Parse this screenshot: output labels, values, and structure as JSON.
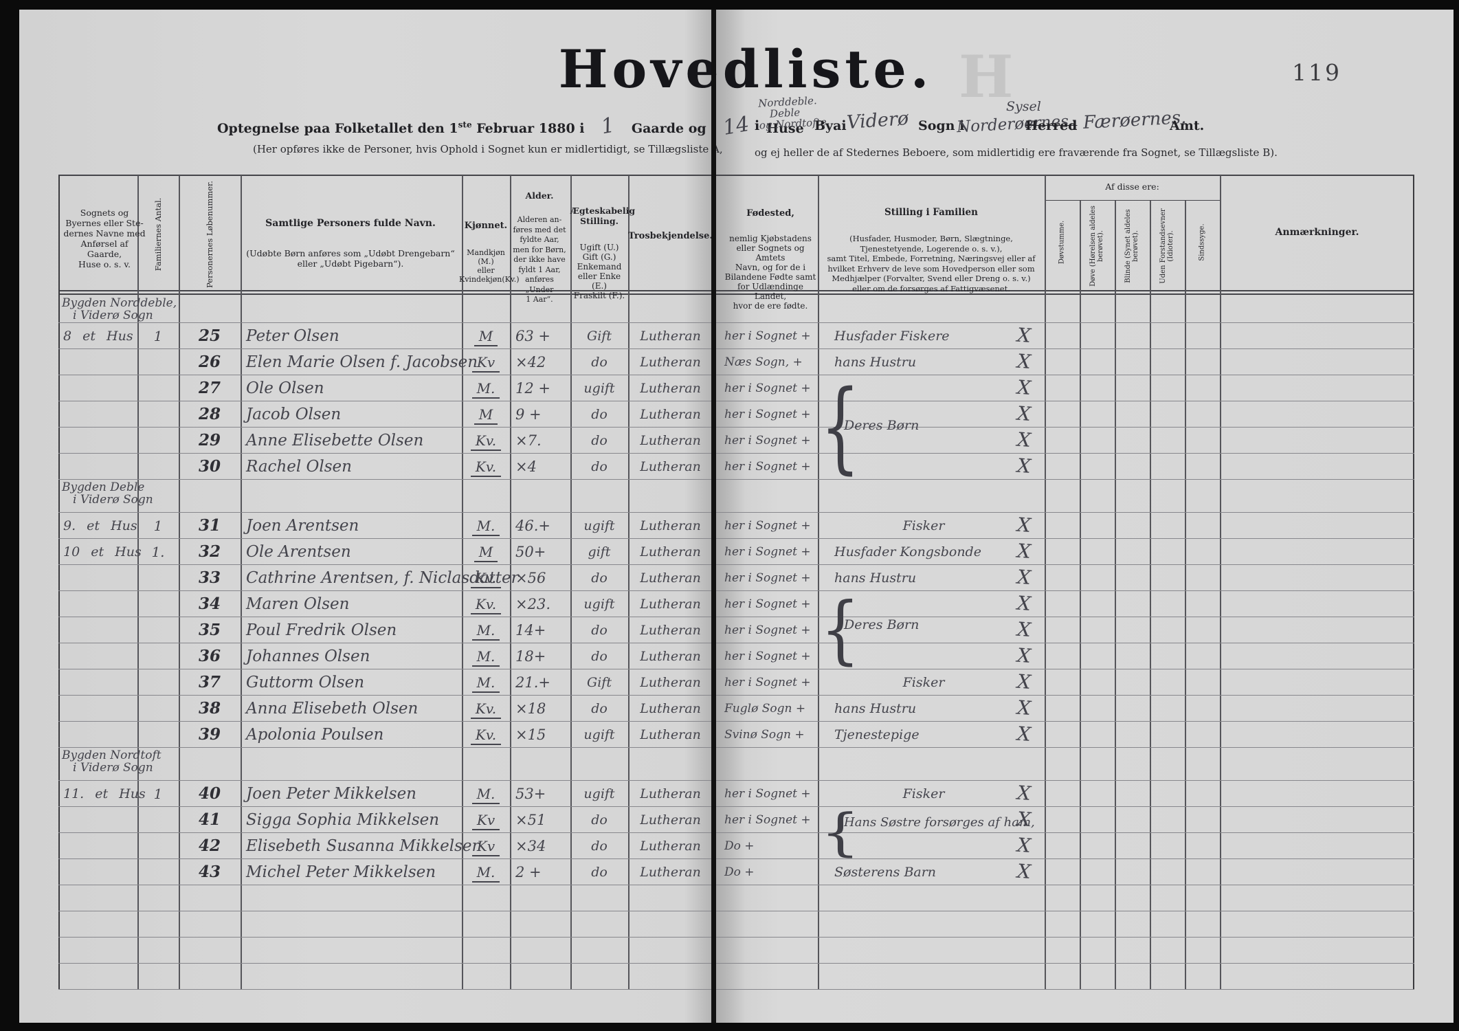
{
  "colors": {
    "paper": "#d6d6d6",
    "print_ink": "#222226",
    "hand_ink": "#44444c"
  },
  "page": {
    "title": "Hovedliste.",
    "page_number": "119",
    "watermark": "H"
  },
  "subtitle": {
    "intro": "Optegnelse paa Folketallet den 1",
    "intro_sup": "ste",
    "intro_rest": " Februar 1880 i",
    "hand_gaarde": "1",
    "gaarde": "Gaarde og",
    "hand_huse": "14",
    "huse": "Huse",
    "i1": "i",
    "hand_place1": "Norddeble.",
    "hand_place2": "Deble",
    "hand_place3": "og Nordtofte",
    "by": "Byai",
    "hand_by": "Viderø",
    "sogn": "Sogn i",
    "hand_sogn": "Norderøernes",
    "hand_syssel": "Sysel",
    "herred": "Herred",
    "i2": "i",
    "hand_amt": "Færøernes.",
    "amt": "Amt.",
    "note_left": "(Her opføres ikke de Personer, hvis Ophold i Sognet kun er midlertidigt, se Tillægsliste A,",
    "note_right": "og ej heller de af Stedernes Beboere, som midlertidig ere fraværende fra Sognet, se Tillægsliste B)."
  },
  "columns": {
    "place": "Sognets og\nByernes eller Ste-\ndernes Navne med\nAnførsel af Gaarde,\nHuse o. s. v.",
    "familier": "Familiernes Antal.",
    "lobenummer": "Personernes Løbenummer.",
    "navn_title": "Samtlige Personers fulde Navn.",
    "navn_body": "(Udøbte Børn anføres som „Udøbt Drengebarn“\neller „Udøbt Pigebarn“).",
    "kjon_title": "Kjønnet.",
    "kjon_body": "Mandkjøn (M.)\neller\nKvindekjøn(Kv.)",
    "alder_title": "Alder.",
    "alder_body": "Alderen an-\nføres med det\nfyldte Aar,\nmen for Børn,\nder ikke have\nfyldt 1 Aar,\nanføres\n„Under\n1 Aar“.",
    "aegteskab_title": "Ægteskabelig\nStilling.",
    "aegteskab_body": "Ugift (U.)\nGift (G.)\nEnkemand\neller Enke (E.)\nFraskilt (F.).",
    "tros": "Trosbekjendelse.",
    "fodested_title": "Fødested,",
    "fodested_body": "nemlig Kjøbstadens\neller Sognets og Amtets\nNavn, og for de i\nBilandene Fødte samt\nfor Udlændinge Landet,\nhvor de ere fødte.",
    "stilling_title": "Stilling i Familien",
    "stilling_body": "(Husfader, Husmoder, Børn, Slægtninge,\nTjenestetyende, Logerende o. s. v.),\nsamt Titel, Embede, Forretning, Næringsvej eller af\nhvilket Erhverv de leve som Hovedperson eller som\nMedhjælper (Forvalter, Svend eller Dreng o. s. v.)\neller om de forsørges af Fattigvæsenet.",
    "af_disse": "Af disse ere:",
    "dovstumme": "Døvstumme.",
    "dove": "Døve (Hørelsen aldeles\nberøvet).",
    "blinde": "Blinde (Synet aldeles\nberøvet).",
    "uden_forstand": "Uden Forstandsevner\n(Idioter).",
    "sindssyge": "Sindssyge.",
    "anmarkninger": "Anmærkninger."
  },
  "braces": [
    {
      "label": "Deres Børn"
    },
    {
      "label": "Deres Børn"
    },
    {
      "label": "Hans Søstre forsørges af ham,"
    }
  ],
  "rows": [
    {
      "type": "section",
      "line1": "Bygden Norddeble,",
      "line2": "i Viderø Sogn"
    },
    {
      "type": "person",
      "house": "8 et Hus",
      "antal": "1",
      "nr": "25",
      "name": "Peter Olsen",
      "sex": "M",
      "age": "63 +",
      "marital": "Gift",
      "religion": "Lutheran",
      "birthplace": "her i Sognet +",
      "position": "Husfader Fiskere",
      "mark": "X"
    },
    {
      "type": "person",
      "nr": "26",
      "name": "Elen Marie Olsen f. Jacobsen",
      "sex": "Kv",
      "age": "×42",
      "marital": "do",
      "religion": "Lutheran",
      "birthplace": "Næs Sogn, +",
      "position": "hans Hustru",
      "mark": "X"
    },
    {
      "type": "person",
      "nr": "27",
      "name": "Ole Olsen",
      "sex": "M.",
      "age": "12 +",
      "marital": "ugift",
      "religion": "Lutheran",
      "birthplace": "her i Sognet +",
      "mark": "X"
    },
    {
      "type": "person",
      "nr": "28",
      "name": "Jacob Olsen",
      "sex": "M",
      "age": "9 +",
      "marital": "do",
      "religion": "Lutheran",
      "birthplace": "her i Sognet +",
      "mark": "X"
    },
    {
      "type": "person",
      "nr": "29",
      "name": "Anne Elisebette Olsen",
      "sex": "Kv.",
      "age": "×7.",
      "marital": "do",
      "religion": "Lutheran",
      "birthplace": "her i Sognet +",
      "mark": "X"
    },
    {
      "type": "person",
      "nr": "30",
      "name": "Rachel Olsen",
      "sex": "Kv.",
      "age": "×4",
      "marital": "do",
      "religion": "Lutheran",
      "birthplace": "her i Sognet +",
      "mark": "X"
    },
    {
      "type": "section",
      "line1": "Bygden Deble",
      "line2": "i Viderø Sogn"
    },
    {
      "type": "person",
      "house": "9. et Hus",
      "antal": "1",
      "nr": "31",
      "name": "Joen Arentsen",
      "sex": "M.",
      "age": "46.+",
      "marital": "ugift",
      "religion": "Lutheran",
      "birthplace": "her i Sognet +",
      "position": "Fisker",
      "pos_center": true,
      "mark": "X"
    },
    {
      "type": "person",
      "house": "10 et Hus",
      "antal": "1.",
      "nr": "32",
      "name": "Ole Arentsen",
      "sex": "M",
      "age": "50+",
      "marital": "gift",
      "religion": "Lutheran",
      "birthplace": "her i Sognet +",
      "position": "Husfader Kongsbonde",
      "mark": "X"
    },
    {
      "type": "person",
      "nr": "33",
      "name": "Cathrine Arentsen, f. Niclasdatter",
      "sex": "Kv.",
      "age": "×56",
      "marital": "do",
      "religion": "Lutheran",
      "birthplace": "her i Sognet +",
      "position": "hans Hustru",
      "mark": "X"
    },
    {
      "type": "person",
      "nr": "34",
      "name": "Maren Olsen",
      "sex": "Kv.",
      "age": "×23.",
      "marital": "ugift",
      "religion": "Lutheran",
      "birthplace": "her i Sognet +",
      "mark": "X"
    },
    {
      "type": "person",
      "nr": "35",
      "name": "Poul Fredrik Olsen",
      "sex": "M.",
      "age": "14+",
      "marital": "do",
      "religion": "Lutheran",
      "birthplace": "her i Sognet +",
      "mark": "X"
    },
    {
      "type": "person",
      "nr": "36",
      "name": "Johannes Olsen",
      "sex": "M.",
      "age": "18+",
      "marital": "do",
      "religion": "Lutheran",
      "birthplace": "her i Sognet +",
      "mark": "X"
    },
    {
      "type": "person",
      "nr": "37",
      "name": "Guttorm Olsen",
      "sex": "M.",
      "age": "21.+",
      "marital": "Gift",
      "religion": "Lutheran",
      "birthplace": "her i Sognet +",
      "position": "Fisker",
      "pos_center": true,
      "mark": "X"
    },
    {
      "type": "person",
      "nr": "38",
      "name": "Anna Elisebeth Olsen",
      "sex": "Kv.",
      "age": "×18",
      "marital": "do",
      "religion": "Lutheran",
      "birthplace": "Fuglø Sogn +",
      "position": "hans Hustru",
      "mark": "X"
    },
    {
      "type": "person",
      "nr": "39",
      "name": "Apolonia Poulsen",
      "sex": "Kv.",
      "age": "×15",
      "marital": "ugift",
      "religion": "Lutheran",
      "birthplace": "Svinø Sogn +",
      "position": "Tjenestepige",
      "mark": "X"
    },
    {
      "type": "section",
      "line1": "Bygden Nordtoft",
      "line2": "i Viderø Sogn"
    },
    {
      "type": "person",
      "house": "11. et Hus",
      "antal": "1",
      "nr": "40",
      "name": "Joen Peter Mikkelsen",
      "sex": "M.",
      "age": "53+",
      "marital": "ugift",
      "religion": "Lutheran",
      "birthplace": "her i Sognet +",
      "position": "Fisker",
      "pos_center": true,
      "mark": "X"
    },
    {
      "type": "person",
      "nr": "41",
      "name": "Sigga Sophia Mikkelsen",
      "sex": "Kv",
      "age": "×51",
      "marital": "do",
      "religion": "Lutheran",
      "birthplace": "her i Sognet +",
      "mark": "X"
    },
    {
      "type": "person",
      "nr": "42",
      "name": "Elisebeth Susanna Mikkelsen",
      "sex": "Kv",
      "age": "×34",
      "marital": "do",
      "religion": "Lutheran",
      "birthplace": "Do +",
      "mark": "X"
    },
    {
      "type": "person",
      "nr": "43",
      "name": "Michel Peter Mikkelsen",
      "sex": "M.",
      "age": "2 +",
      "marital": "do",
      "religion": "Lutheran",
      "birthplace": "Do +",
      "position": "Søsterens Barn",
      "mark": "X"
    },
    {
      "type": "empty"
    },
    {
      "type": "empty"
    },
    {
      "type": "empty"
    },
    {
      "type": "empty"
    }
  ]
}
